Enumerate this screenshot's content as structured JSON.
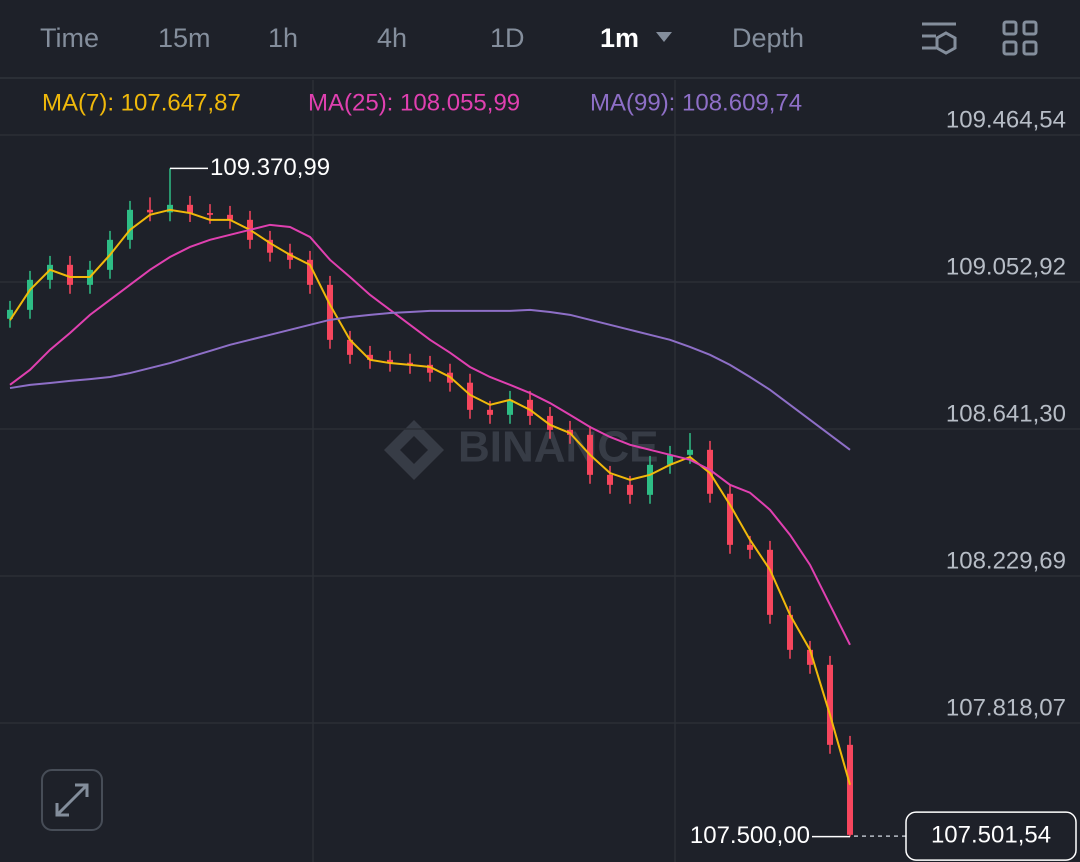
{
  "tabs": [
    "Time",
    "15m",
    "1h",
    "4h",
    "1D",
    "1m",
    "Depth"
  ],
  "active_tab": 5,
  "watermark": "BINANCE",
  "chart_data": {
    "type": "candlestick",
    "categories": [
      null,
      null,
      null,
      null,
      null,
      null,
      null,
      null,
      null,
      null,
      null,
      null,
      null,
      null,
      null,
      null,
      null,
      null,
      null,
      null,
      null,
      null,
      null,
      null,
      null,
      null,
      null,
      null,
      null,
      null,
      null,
      null,
      null,
      null,
      null,
      null,
      null,
      null,
      null,
      null,
      null,
      null,
      null
    ],
    "open": [
      108950,
      108975,
      109059,
      109101,
      109045,
      109087,
      109171,
      109255,
      109248,
      109269,
      109246,
      109241,
      109227,
      109171,
      109135,
      109115,
      109045,
      108891,
      108849,
      108835,
      108827,
      108821,
      108799,
      108771,
      108695,
      108681,
      108723,
      108678,
      108639,
      108625,
      108513,
      108485,
      108457,
      108541,
      108569,
      108583,
      108460,
      108317,
      108303,
      108121,
      108023,
      107981,
      107757
    ],
    "high": [
      109000,
      109084,
      109126,
      109126,
      109112,
      109196,
      109280,
      109290,
      109370.99,
      109294,
      109271,
      109266,
      109252,
      109196,
      109160,
      109140,
      109070,
      108916,
      108874,
      108860,
      108852,
      108846,
      108824,
      108796,
      108720,
      108748,
      108748,
      108703,
      108664,
      108650,
      108538,
      108510,
      108566,
      108594,
      108630,
      108608,
      108485,
      108342,
      108328,
      108146,
      108048,
      108006,
      107782
    ],
    "low": [
      108925,
      108950,
      109034,
      109020,
      109020,
      109062,
      109146,
      109223,
      109223,
      109221,
      109216,
      109202,
      109146,
      109110,
      109090,
      109020,
      108866,
      108824,
      108810,
      108802,
      108796,
      108774,
      108746,
      108670,
      108656,
      108656,
      108653,
      108614,
      108600,
      108488,
      108460,
      108432,
      108432,
      108516,
      108544,
      108435,
      108292,
      108278,
      108096,
      107998,
      107956,
      107732,
      107500
    ],
    "close": [
      108975,
      109059,
      109101,
      109045,
      109087,
      109171,
      109255,
      109248,
      109269,
      109246,
      109241,
      109227,
      109171,
      109135,
      109115,
      109045,
      108891,
      108849,
      108835,
      108827,
      108821,
      108799,
      108771,
      108695,
      108681,
      108723,
      108678,
      108639,
      108625,
      108513,
      108485,
      108457,
      108541,
      108569,
      108583,
      108460,
      108317,
      108303,
      108121,
      108023,
      107981,
      107757,
      107505
    ],
    "up_color": "#2ebd85",
    "down_color": "#f6465d",
    "series": [
      {
        "name": "MA(7)",
        "label": "MA(7): 107.647,87",
        "color": "#f0b90b",
        "values": [
          108946,
          109031,
          109087,
          109067,
          109067,
          109129,
          109199,
          109241,
          109255,
          109246,
          109227,
          109227,
          109199,
          109162,
          109129,
          109101,
          108989,
          108891,
          108835,
          108826,
          108821,
          108815,
          108787,
          108737,
          108709,
          108723,
          108695,
          108653,
          108630,
          108569,
          108518,
          108499,
          108513,
          108541,
          108563,
          108518,
          108429,
          108331,
          108247,
          108121,
          108023,
          107841,
          107645
        ]
      },
      {
        "name": "MA(25)",
        "label": "MA(25): 108.055,99",
        "color": "#e040b0",
        "values": [
          108765,
          108807,
          108863,
          108910,
          108961,
          109003,
          109045,
          109087,
          109123,
          109151,
          109171,
          109185,
          109199,
          109213,
          109207,
          109179,
          109115,
          109067,
          109017,
          108975,
          108933,
          108891,
          108855,
          108815,
          108787,
          108765,
          108742,
          108714,
          108681,
          108647,
          108619,
          108597,
          108583,
          108569,
          108555,
          108527,
          108485,
          108463,
          108415,
          108345,
          108261,
          108149,
          108037
        ]
      },
      {
        "name": "MA(99)",
        "label": "MA(99): 108.609,74",
        "color": "#8e6fc7",
        "values": [
          108756,
          108765,
          108770,
          108776,
          108781,
          108787,
          108798,
          108812,
          108826,
          108843,
          108860,
          108877,
          108891,
          108905,
          108919,
          108933,
          108947,
          108955,
          108961,
          108966,
          108969,
          108972,
          108972,
          108972,
          108972,
          108972,
          108975,
          108969,
          108961,
          108947,
          108933,
          108919,
          108905,
          108891,
          108871,
          108849,
          108821,
          108787,
          108751,
          108709,
          108667,
          108625,
          108583
        ]
      }
    ],
    "ylim": [
      107428.94,
      109618.54
    ],
    "yticks": [
      {
        "value": 109464.54,
        "label": "109.464,54"
      },
      {
        "value": 109052.92,
        "label": "109.052,92"
      },
      {
        "value": 108641.3,
        "label": "108.641,30"
      },
      {
        "value": 108229.69,
        "label": "108.229,69"
      },
      {
        "value": 107818.07,
        "label": "107.818,07"
      }
    ],
    "grid": true,
    "high_annotation": {
      "value": 109370.99,
      "label": "109.370,99",
      "index": 8
    },
    "low_annotation": {
      "value": 107500,
      "label": "107.500,00",
      "index": 42
    },
    "current_price": {
      "value": 107501.54,
      "label": "107.501,54"
    }
  }
}
